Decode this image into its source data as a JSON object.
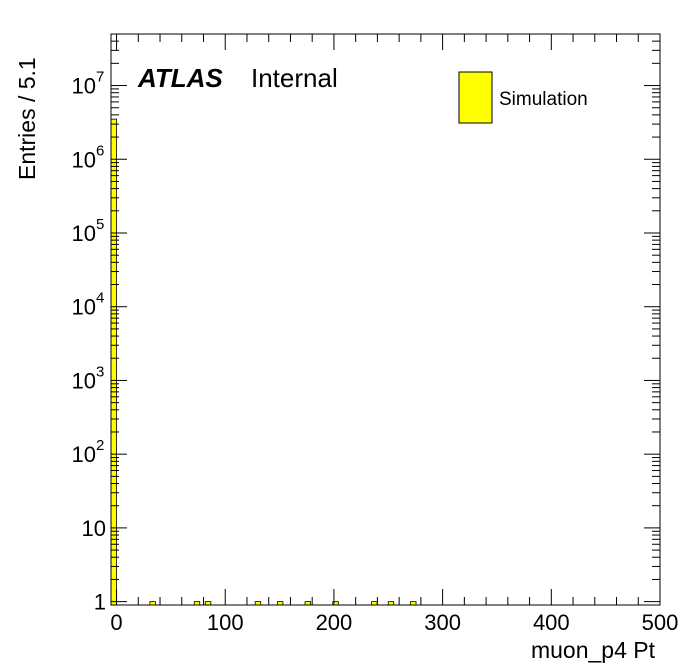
{
  "chart_data": {
    "type": "bar",
    "xlabel": "muon_p4 Pt",
    "ylabel": "Entries / 5.1",
    "xlim": [
      -5.1,
      500
    ],
    "ylim": [
      0.9,
      50000000
    ],
    "yscale": "log",
    "bin_width": 5.1,
    "label_main": "ATLAS",
    "label_sub": "Internal",
    "legend": {
      "position": "top-right",
      "entries": [
        "Simulation"
      ]
    },
    "series": [
      {
        "name": "Simulation",
        "color": "#ffff00",
        "bins": [
          {
            "x": -2.55,
            "y": 3500000
          },
          {
            "x": 33.2,
            "y": 1
          },
          {
            "x": 74.0,
            "y": 1
          },
          {
            "x": 84.2,
            "y": 1
          },
          {
            "x": 130.1,
            "y": 1
          },
          {
            "x": 150.5,
            "y": 1
          },
          {
            "x": 176.0,
            "y": 1
          },
          {
            "x": 201.5,
            "y": 1
          },
          {
            "x": 237.2,
            "y": 1
          },
          {
            "x": 252.5,
            "y": 1
          },
          {
            "x": 273.0,
            "y": 1
          }
        ]
      }
    ],
    "x_ticks": [
      {
        "value": 0,
        "label": "0"
      },
      {
        "value": 100,
        "label": "100"
      },
      {
        "value": 200,
        "label": "200"
      },
      {
        "value": 300,
        "label": "300"
      },
      {
        "value": 400,
        "label": "400"
      },
      {
        "value": 500,
        "label": "500"
      }
    ],
    "y_ticks": [
      {
        "value": 1,
        "base": "1",
        "exp": ""
      },
      {
        "value": 10,
        "base": "10",
        "exp": ""
      },
      {
        "value": 100,
        "base": "10",
        "exp": "2"
      },
      {
        "value": 1000,
        "base": "10",
        "exp": "3"
      },
      {
        "value": 10000,
        "base": "10",
        "exp": "4"
      },
      {
        "value": 100000,
        "base": "10",
        "exp": "5"
      },
      {
        "value": 1000000,
        "base": "10",
        "exp": "6"
      },
      {
        "value": 10000000,
        "base": "10",
        "exp": "7"
      }
    ]
  }
}
